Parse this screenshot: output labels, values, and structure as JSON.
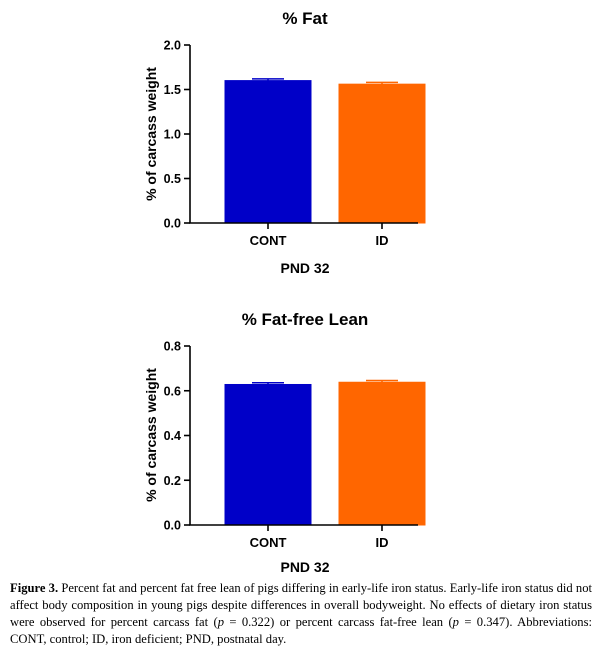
{
  "chart_data": [
    {
      "type": "bar",
      "title": "% Fat",
      "ylabel": "% of carcass weight",
      "xlabel": "PND 32",
      "ylim": [
        0,
        2.0
      ],
      "yticks": [
        "0.0",
        "0.5",
        "1.0",
        "1.5",
        "2.0"
      ],
      "categories": [
        "CONT",
        "ID"
      ],
      "values": [
        1.6,
        1.56
      ],
      "errors": [
        0.02,
        0.02
      ],
      "colors": [
        "#0000c8",
        "#ff6600"
      ],
      "grid": false
    },
    {
      "type": "bar",
      "title": "% Fat-free Lean",
      "ylabel": "% of carcass weight",
      "xlabel": "PND 32",
      "ylim": [
        0,
        0.8
      ],
      "yticks": [
        "0.0",
        "0.2",
        "0.4",
        "0.6",
        "0.8"
      ],
      "categories": [
        "CONT",
        "ID"
      ],
      "values": [
        0.628,
        0.638
      ],
      "errors": [
        0.008,
        0.008
      ],
      "colors": [
        "#0000c8",
        "#ff6600"
      ],
      "grid": false
    }
  ],
  "caption": {
    "label": "Figure 3.",
    "text_1": " Percent fat and percent fat free lean of pigs differing in early-life iron status. Early-life iron status did not affect body composition in young pigs despite differences in overall bodyweight. No effects of dietary iron status were observed for percent carcass fat (",
    "p_symbol_1": "p",
    "text_2": " = 0.322) or percent carcass fat-free lean (",
    "p_symbol_2": "p",
    "text_3": " = 0.347). Abbreviations: CONT, control; ID, iron deficient; PND, postnatal day."
  }
}
